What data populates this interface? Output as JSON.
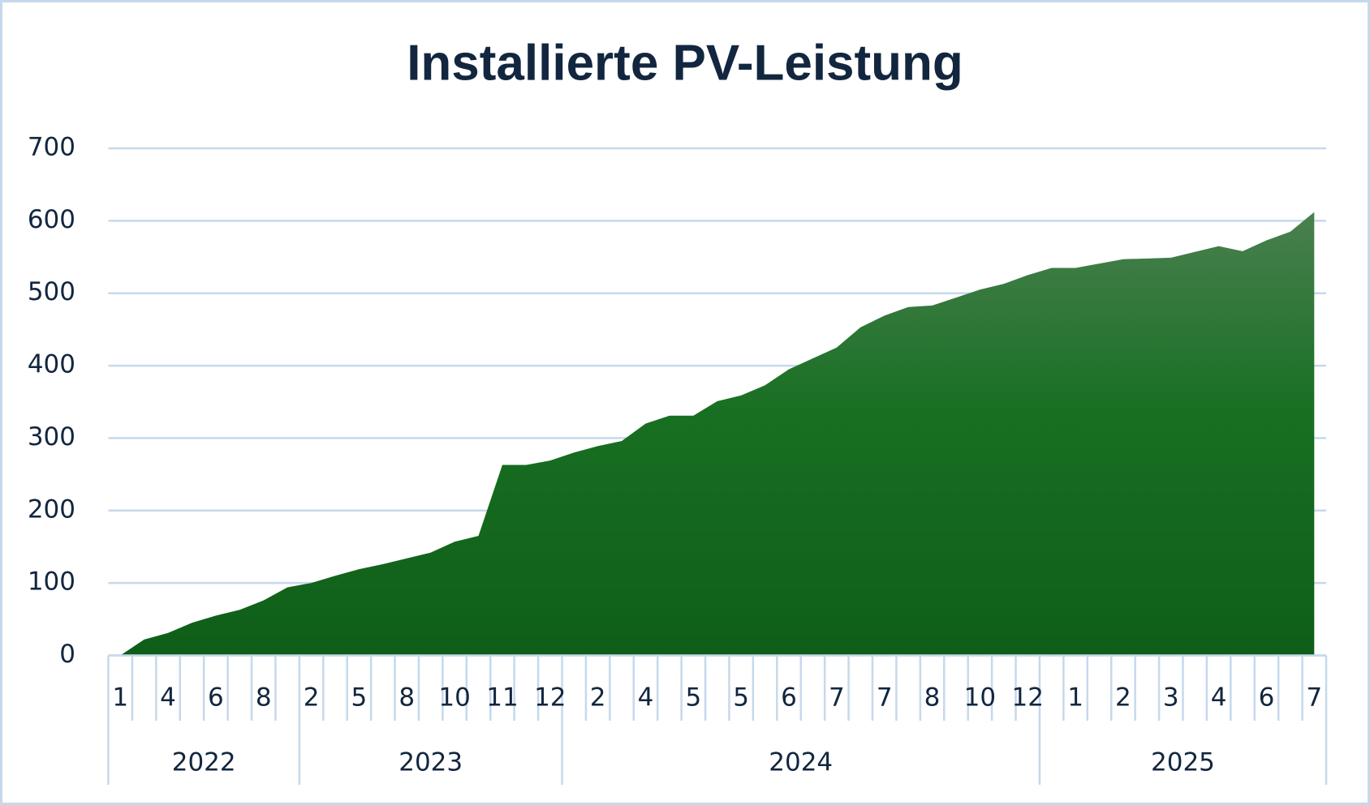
{
  "chart_data": {
    "type": "area",
    "title": "Installierte PV-Leistung",
    "categories": [
      "1",
      null,
      "4",
      null,
      "6",
      null,
      "8",
      null,
      "2",
      null,
      "5",
      null,
      "8",
      null,
      "10",
      null,
      "11",
      null,
      "12",
      null,
      "2",
      null,
      "4",
      null,
      "5",
      null,
      "5",
      null,
      "6",
      null,
      "7",
      null,
      "7",
      null,
      "8",
      null,
      "10",
      null,
      "12",
      null,
      "1",
      null,
      "2",
      null,
      "3",
      null,
      "4",
      null,
      "6",
      null,
      "7"
    ],
    "category_years": [
      "2022",
      null,
      null,
      null,
      null,
      null,
      null,
      null,
      "2023",
      null,
      null,
      null,
      null,
      null,
      null,
      null,
      null,
      null,
      null,
      "2024",
      null,
      null,
      null,
      null,
      null,
      null,
      null,
      null,
      null,
      null,
      null,
      null,
      null,
      null,
      null,
      null,
      null,
      null,
      null,
      "2025",
      null,
      null,
      null,
      null,
      null,
      null,
      null,
      null,
      null,
      null,
      null
    ],
    "values": [
      0,
      22,
      31,
      45,
      55,
      63,
      76,
      94,
      100,
      110,
      119,
      126,
      134,
      142,
      157,
      165,
      263,
      263,
      269,
      280,
      289,
      296,
      320,
      331,
      331,
      351,
      359,
      373,
      395,
      410,
      425,
      453,
      469,
      481,
      483,
      494,
      505,
      513,
      525,
      535,
      535,
      541,
      547,
      548,
      549,
      557,
      565,
      558,
      573,
      585,
      612
    ],
    "color": "#156b20",
    "ylim": [
      0,
      700
    ],
    "yticks": [
      0,
      100,
      200,
      300,
      400,
      500,
      600,
      700
    ],
    "grid": true
  }
}
